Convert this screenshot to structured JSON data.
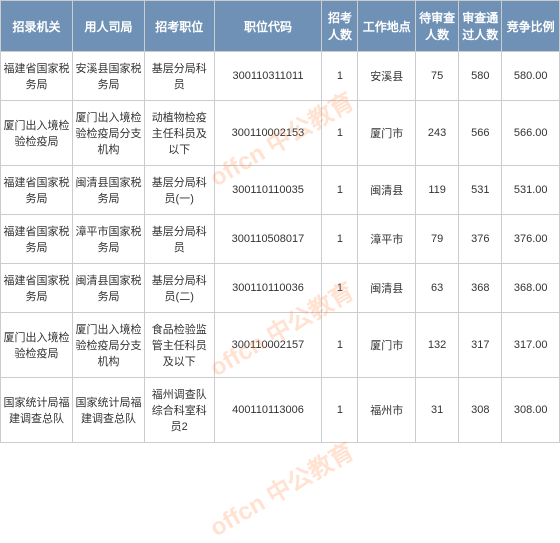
{
  "watermark": "offcn 中公教育",
  "table": {
    "header_bg": "#6f91b6",
    "header_color": "#ffffff",
    "border_color": "#cccccc",
    "font_size_header": 12,
    "font_size_cell": 11,
    "columns": [
      "招录机关",
      "用人司局",
      "招考职位",
      "职位代码",
      "招考人数",
      "工作地点",
      "待审查人数",
      "审查通过人数",
      "竞争比例"
    ],
    "rows": [
      {
        "org": "福建省国家税务局",
        "dept": "安溪县国家税务局",
        "pos": "基层分局科员",
        "code": "300110311011",
        "num": "1",
        "loc": "安溪县",
        "pending": "75",
        "passed": "580",
        "ratio": "580.00"
      },
      {
        "org": "厦门出入境检验检疫局",
        "dept": "厦门出入境检验检疫局分支机构",
        "pos": "动植物检疫主任科员及以下",
        "code": "300110002153",
        "num": "1",
        "loc": "厦门市",
        "pending": "243",
        "passed": "566",
        "ratio": "566.00"
      },
      {
        "org": "福建省国家税务局",
        "dept": "闽清县国家税务局",
        "pos": "基层分局科员(一)",
        "code": "300110110035",
        "num": "1",
        "loc": "闽清县",
        "pending": "119",
        "passed": "531",
        "ratio": "531.00"
      },
      {
        "org": "福建省国家税务局",
        "dept": "漳平市国家税务局",
        "pos": "基层分局科员",
        "code": "300110508017",
        "num": "1",
        "loc": "漳平市",
        "pending": "79",
        "passed": "376",
        "ratio": "376.00"
      },
      {
        "org": "福建省国家税务局",
        "dept": "闽清县国家税务局",
        "pos": "基层分局科员(二)",
        "code": "300110110036",
        "num": "1",
        "loc": "闽清县",
        "pending": "63",
        "passed": "368",
        "ratio": "368.00"
      },
      {
        "org": "厦门出入境检验检疫局",
        "dept": "厦门出入境检验检疫局分支机构",
        "pos": "食品检验监管主任科员及以下",
        "code": "300110002157",
        "num": "1",
        "loc": "厦门市",
        "pending": "132",
        "passed": "317",
        "ratio": "317.00"
      },
      {
        "org": "国家统计局福建调查总队",
        "dept": "国家统计局福建调查总队",
        "pos": "福州调查队综合科室科员2",
        "code": "400110113006",
        "num": "1",
        "loc": "福州市",
        "pending": "31",
        "passed": "308",
        "ratio": "308.00"
      }
    ]
  }
}
